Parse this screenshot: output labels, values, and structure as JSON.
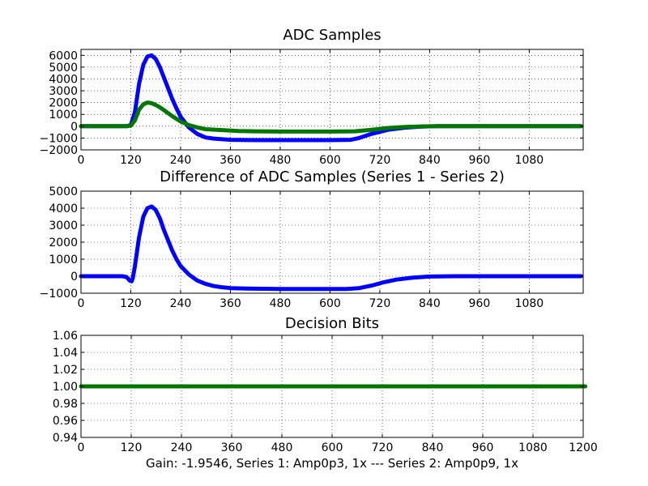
{
  "figure": {
    "xlabel": "Gain: -1.9546, Series 1: Amp0p3, 1x --- Series 2: Amp0p9, 1x"
  },
  "chart_data": [
    {
      "type": "line",
      "title": "ADC Samples",
      "xlim": [
        0,
        1210
      ],
      "ylim": [
        -2000,
        6500
      ],
      "xticks": [
        0,
        120,
        240,
        360,
        480,
        600,
        720,
        840,
        960,
        1080
      ],
      "yticks": [
        -2000,
        -1000,
        0,
        1000,
        2000,
        3000,
        4000,
        5000,
        6000
      ],
      "xtick_labels": [
        "0",
        "120",
        "240",
        "360",
        "480",
        "600",
        "720",
        "840",
        "960",
        "1080"
      ],
      "ytick_labels": [
        "−2000",
        "−1000",
        "0",
        "1000",
        "2000",
        "3000",
        "4000",
        "5000",
        "6000"
      ],
      "grid": true,
      "series": [
        {
          "color": "#0000ff",
          "x": [
            0,
            100,
            110,
            120,
            130,
            140,
            150,
            160,
            170,
            180,
            190,
            200,
            210,
            220,
            230,
            240,
            260,
            280,
            300,
            320,
            360,
            420,
            480,
            540,
            600,
            650,
            670,
            700,
            740,
            780,
            820,
            860,
            900,
            1000,
            1100,
            1205
          ],
          "y": [
            0,
            0,
            0,
            100,
            1200,
            3600,
            5200,
            5900,
            6000,
            5700,
            5000,
            4100,
            3200,
            2300,
            1500,
            800,
            -100,
            -650,
            -950,
            -1050,
            -1150,
            -1180,
            -1180,
            -1180,
            -1180,
            -1150,
            -1000,
            -650,
            -300,
            -120,
            -30,
            0,
            0,
            0,
            0,
            0
          ]
        },
        {
          "color": "#007700",
          "x": [
            0,
            100,
            110,
            120,
            130,
            140,
            150,
            160,
            170,
            180,
            190,
            200,
            220,
            240,
            260,
            280,
            300,
            340,
            380,
            420,
            480,
            540,
            600,
            660,
            700,
            740,
            780,
            820,
            860,
            900,
            1000,
            1100,
            1205
          ],
          "y": [
            0,
            0,
            0,
            50,
            500,
            1400,
            1850,
            2000,
            1950,
            1800,
            1600,
            1350,
            850,
            400,
            100,
            -100,
            -250,
            -330,
            -400,
            -430,
            -450,
            -450,
            -450,
            -430,
            -300,
            -150,
            -60,
            -20,
            0,
            0,
            0,
            0,
            0
          ]
        }
      ]
    },
    {
      "type": "line",
      "title": "Difference of ADC Samples (Series 1 - Series 2)",
      "xlim": [
        0,
        1210
      ],
      "ylim": [
        -1000,
        5000
      ],
      "xticks": [
        0,
        120,
        240,
        360,
        480,
        600,
        720,
        840,
        960,
        1080
      ],
      "yticks": [
        -1000,
        0,
        1000,
        2000,
        3000,
        4000,
        5000
      ],
      "xtick_labels": [
        "0",
        "120",
        "240",
        "360",
        "480",
        "600",
        "720",
        "840",
        "960",
        "1080"
      ],
      "ytick_labels": [
        "−1000",
        "0",
        "1000",
        "2000",
        "3000",
        "4000",
        "5000"
      ],
      "grid": true,
      "series": [
        {
          "color": "#0000ff",
          "x": [
            0,
            100,
            110,
            117,
            122,
            125,
            130,
            140,
            150,
            160,
            170,
            180,
            190,
            200,
            210,
            220,
            230,
            240,
            260,
            280,
            300,
            320,
            340,
            360,
            400,
            480,
            560,
            640,
            670,
            700,
            730,
            760,
            800,
            840,
            900,
            1000,
            1100,
            1205
          ],
          "y": [
            0,
            0,
            -50,
            -250,
            -300,
            -100,
            600,
            2300,
            3500,
            4000,
            4100,
            3900,
            3400,
            2700,
            2100,
            1500,
            1000,
            600,
            100,
            -250,
            -450,
            -580,
            -650,
            -700,
            -730,
            -750,
            -750,
            -750,
            -700,
            -550,
            -350,
            -200,
            -80,
            -20,
            0,
            0,
            0,
            0
          ]
        }
      ]
    },
    {
      "type": "line",
      "title": "Decision Bits",
      "xlim": [
        0,
        1200
      ],
      "ylim": [
        0.94,
        1.06
      ],
      "xticks": [
        0,
        120,
        240,
        360,
        480,
        600,
        720,
        840,
        960,
        1080,
        1200
      ],
      "yticks": [
        0.94,
        0.96,
        0.98,
        1.0,
        1.02,
        1.04,
        1.06
      ],
      "xtick_labels": [
        "0",
        "120",
        "240",
        "360",
        "480",
        "600",
        "720",
        "840",
        "960",
        "1080",
        "1200"
      ],
      "ytick_labels": [
        "0.94",
        "0.96",
        "0.98",
        "1.00",
        "1.02",
        "1.04",
        "1.06"
      ],
      "grid": true,
      "series": [
        {
          "color": "#007700",
          "x": [
            0,
            1205
          ],
          "y": [
            1.0,
            1.0
          ]
        }
      ]
    }
  ]
}
